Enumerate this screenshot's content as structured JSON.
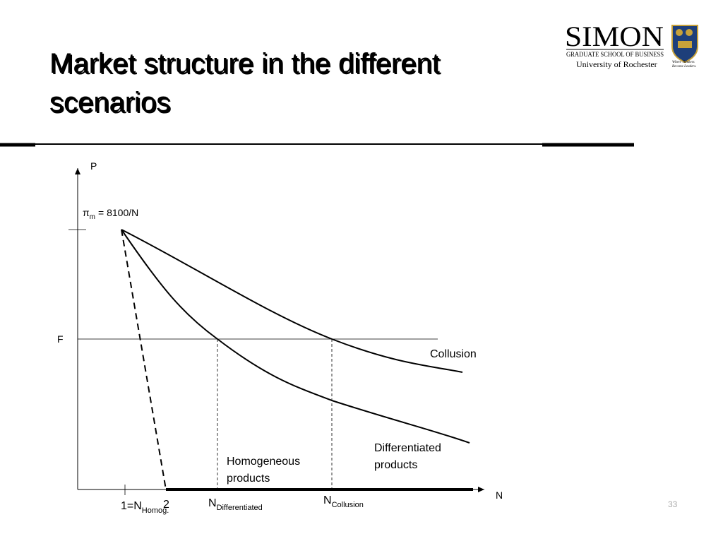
{
  "title": [
    "Market structure in the different",
    "scenarios"
  ],
  "logo": {
    "name": "SIMON",
    "school": "GRADUATE SCHOOL OF BUSINESS",
    "university": "University of Rochester",
    "motto": [
      "Where Thinkers",
      "Become Leaders."
    ]
  },
  "diagram": {
    "y_axis": "P",
    "x_axis": "N",
    "fixed_cost": "F",
    "monopoly_profit": {
      "symbol": "π",
      "subscript": "m",
      "formula": "= 8100/N"
    },
    "collusion": "Collusion",
    "differentiated": [
      "Differentiated",
      "products"
    ],
    "homogeneous": [
      "Homogeneous",
      "products"
    ],
    "n_homog": {
      "prefix": "1=N",
      "subscript": "Homog.",
      "suffix": "2"
    },
    "n_differentiated": {
      "symbol": "N",
      "subscript": "Differentiated"
    },
    "n_collusion": {
      "symbol": "N",
      "subscript": "Collusion"
    }
  },
  "slide_number": "33"
}
